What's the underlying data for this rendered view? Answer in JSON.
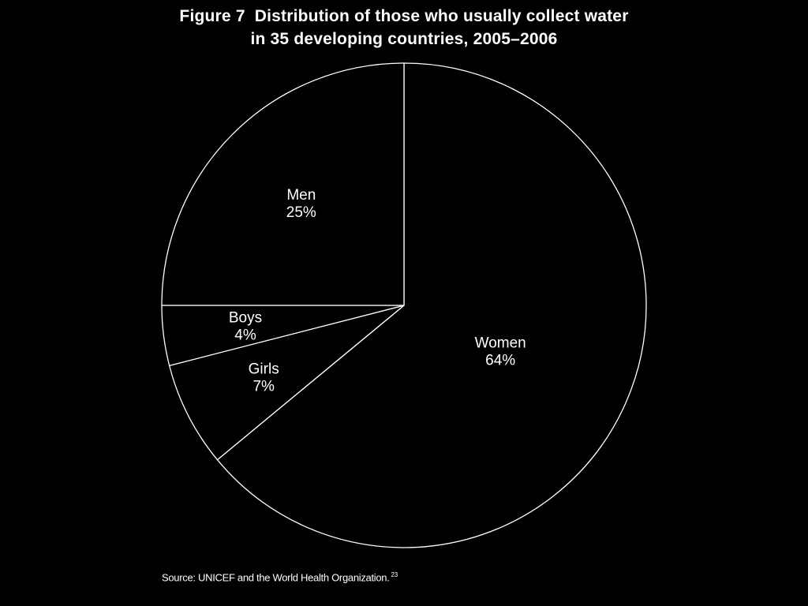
{
  "figure": {
    "title_line_1": "Figure 7  Distribution of those who usually collect water",
    "title_line_2": "in 35 developing countries, 2005–2006"
  },
  "source": {
    "text": "Source: UNICEF and the World Health Organization.",
    "superscript": "23"
  },
  "colors": {
    "background": "#000000",
    "line": "#ffffff",
    "text": "#ffffff"
  },
  "chart_data": {
    "type": "pie",
    "title": "Figure 7  Distribution of those who usually collect water in 35 developing countries, 2005–2006",
    "unit": "%",
    "start_angle_deg": 0,
    "direction": "clockwise",
    "slices": [
      {
        "label": "Women",
        "value": 64,
        "value_label": "64%"
      },
      {
        "label": "Girls",
        "value": 7,
        "value_label": "7%"
      },
      {
        "label": "Boys",
        "value": 4,
        "value_label": "4%"
      },
      {
        "label": "Men",
        "value": 25,
        "value_label": "25%"
      }
    ]
  }
}
